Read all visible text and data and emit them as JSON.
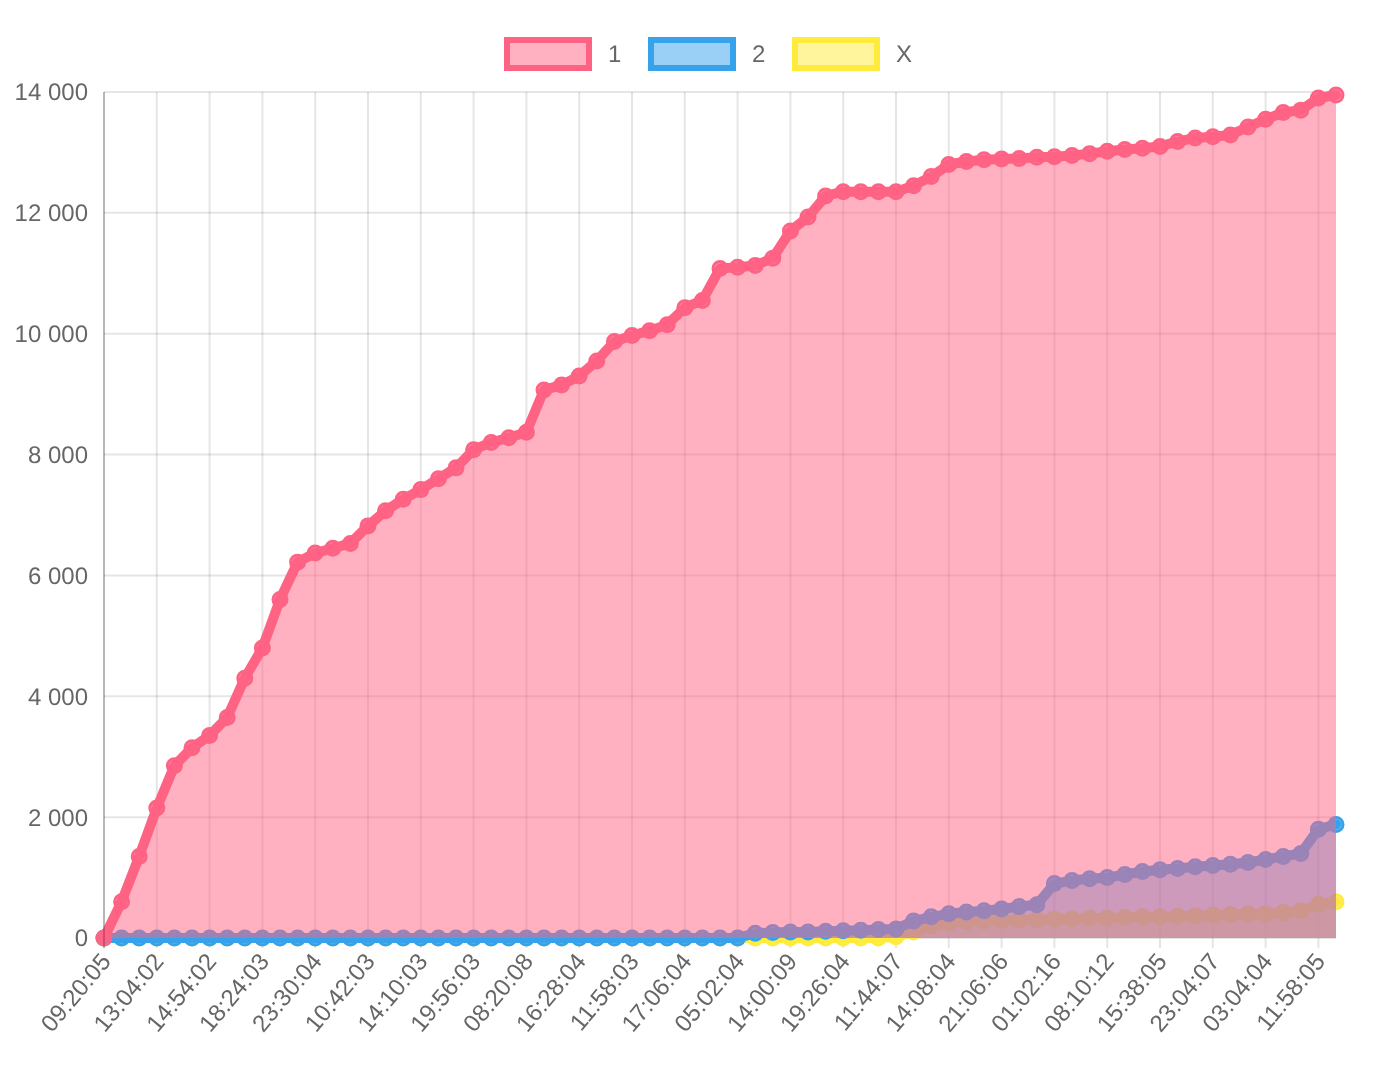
{
  "chart_data": {
    "type": "area",
    "categories": [
      "09:20:05",
      null,
      null,
      "13:04:02",
      null,
      null,
      "14:54:02",
      null,
      null,
      "18:24:03",
      null,
      null,
      "23:30:04",
      null,
      null,
      "10:42:03",
      null,
      null,
      "14:10:03",
      null,
      null,
      "19:56:03",
      null,
      null,
      "08:20:08",
      null,
      null,
      "16:28:04",
      null,
      null,
      "11:58:03",
      null,
      null,
      "17:06:04",
      null,
      null,
      "05:02:04",
      null,
      null,
      "14:00:09",
      null,
      null,
      "19:26:04",
      null,
      null,
      "11:44:07",
      null,
      null,
      "14:08:04",
      null,
      null,
      "21:06:06",
      null,
      null,
      "01:02:16",
      null,
      null,
      "08:10:12",
      null,
      null,
      "15:38:05",
      null,
      null,
      "23:04:07",
      null,
      null,
      "03:04:04",
      null,
      null,
      "11:58:05",
      null
    ],
    "series": [
      {
        "name": "1",
        "color": "#ff6384",
        "values": [
          0,
          600,
          1350,
          2150,
          2850,
          3150,
          3350,
          3650,
          4300,
          4800,
          5600,
          6220,
          6370,
          6450,
          6530,
          6820,
          7070,
          7260,
          7420,
          7600,
          7780,
          8080,
          8200,
          8280,
          8370,
          9070,
          9150,
          9300,
          9550,
          9870,
          9970,
          10050,
          10150,
          10430,
          10550,
          11080,
          11100,
          11130,
          11250,
          11700,
          11930,
          12280,
          12350,
          12350,
          12350,
          12350,
          12450,
          12600,
          12800,
          12850,
          12880,
          12890,
          12900,
          12920,
          12930,
          12950,
          12980,
          13020,
          13050,
          13070,
          13100,
          13180,
          13240,
          13260,
          13290,
          13420,
          13550,
          13660,
          13700,
          13900,
          13950
        ]
      },
      {
        "name": "2",
        "color": "#36a2eb",
        "values": [
          0,
          0,
          0,
          0,
          0,
          0,
          0,
          0,
          0,
          0,
          0,
          0,
          0,
          0,
          0,
          0,
          0,
          0,
          0,
          0,
          0,
          0,
          0,
          0,
          0,
          0,
          0,
          0,
          0,
          0,
          0,
          0,
          0,
          0,
          0,
          0,
          0,
          80,
          90,
          100,
          100,
          110,
          120,
          130,
          140,
          150,
          280,
          350,
          400,
          430,
          450,
          480,
          520,
          550,
          900,
          950,
          980,
          1000,
          1050,
          1100,
          1130,
          1150,
          1180,
          1200,
          1220,
          1250,
          1300,
          1350,
          1400,
          1800,
          1880
        ]
      },
      {
        "name": "X",
        "color": "#ffeb3b",
        "values": [
          0,
          0,
          0,
          0,
          0,
          0,
          0,
          0,
          0,
          0,
          0,
          0,
          0,
          0,
          0,
          0,
          0,
          0,
          0,
          0,
          0,
          0,
          0,
          0,
          0,
          0,
          0,
          0,
          0,
          0,
          0,
          0,
          0,
          0,
          0,
          0,
          0,
          0,
          0,
          0,
          0,
          0,
          0,
          0,
          0,
          20,
          100,
          200,
          250,
          270,
          280,
          290,
          300,
          300,
          310,
          320,
          330,
          330,
          340,
          350,
          350,
          360,
          370,
          380,
          390,
          400,
          400,
          420,
          450,
          560,
          600
        ]
      }
    ],
    "ylim": [
      0,
      14000
    ],
    "yticks": [
      {
        "value": 0,
        "label": "0"
      },
      {
        "value": 2000,
        "label": "2 000"
      },
      {
        "value": 4000,
        "label": "4 000"
      },
      {
        "value": 6000,
        "label": "6 000"
      },
      {
        "value": 8000,
        "label": "8 000"
      },
      {
        "value": 10000,
        "label": "10 000"
      },
      {
        "value": 12000,
        "label": "12 000"
      },
      {
        "value": 14000,
        "label": "14 000"
      }
    ],
    "grid": true,
    "legend": "top",
    "marker": "circle",
    "line_style": "solid"
  }
}
